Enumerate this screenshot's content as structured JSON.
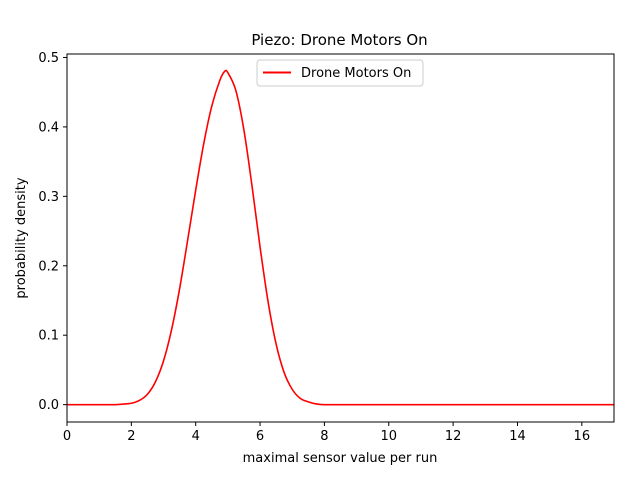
{
  "chart_data": {
    "type": "line",
    "title": "Piezo: Drone Motors On",
    "xlabel": "maximal sensor value per run",
    "ylabel": "probability density",
    "xlim": [
      0,
      17
    ],
    "ylim": [
      -0.025,
      0.505
    ],
    "xticks": [
      0,
      2,
      4,
      6,
      8,
      10,
      12,
      14,
      16
    ],
    "xtick_labels": [
      "0",
      "2",
      "4",
      "6",
      "8",
      "10",
      "12",
      "14",
      "16"
    ],
    "yticks": [
      0.0,
      0.1,
      0.2,
      0.3,
      0.4,
      0.5
    ],
    "ytick_labels": [
      "0.0",
      "0.1",
      "0.2",
      "0.3",
      "0.4",
      "0.5"
    ],
    "grid": false,
    "legend": {
      "position": "top-center",
      "entries": [
        "Drone Motors On"
      ]
    },
    "series": [
      {
        "name": "Drone Motors On",
        "color": "#ff0000",
        "x": [
          0,
          1,
          1.5,
          2,
          2.25,
          2.5,
          2.75,
          3,
          3.25,
          3.5,
          3.75,
          4,
          4.25,
          4.5,
          4.75,
          4.9,
          5,
          5.25,
          5.5,
          5.75,
          6,
          6.25,
          6.5,
          6.75,
          7,
          7.25,
          7.5,
          7.75,
          8,
          8.5,
          9,
          10,
          12,
          14,
          16,
          17
        ],
        "y": [
          0.0,
          0.0,
          0.0,
          0.002,
          0.006,
          0.015,
          0.033,
          0.063,
          0.108,
          0.167,
          0.237,
          0.309,
          0.376,
          0.43,
          0.467,
          0.48,
          0.478,
          0.452,
          0.395,
          0.315,
          0.227,
          0.148,
          0.087,
          0.046,
          0.022,
          0.009,
          0.004,
          0.001,
          0.0,
          0.0,
          0.0,
          0.0,
          0.0,
          0.0,
          0.0,
          0.0
        ]
      }
    ]
  }
}
